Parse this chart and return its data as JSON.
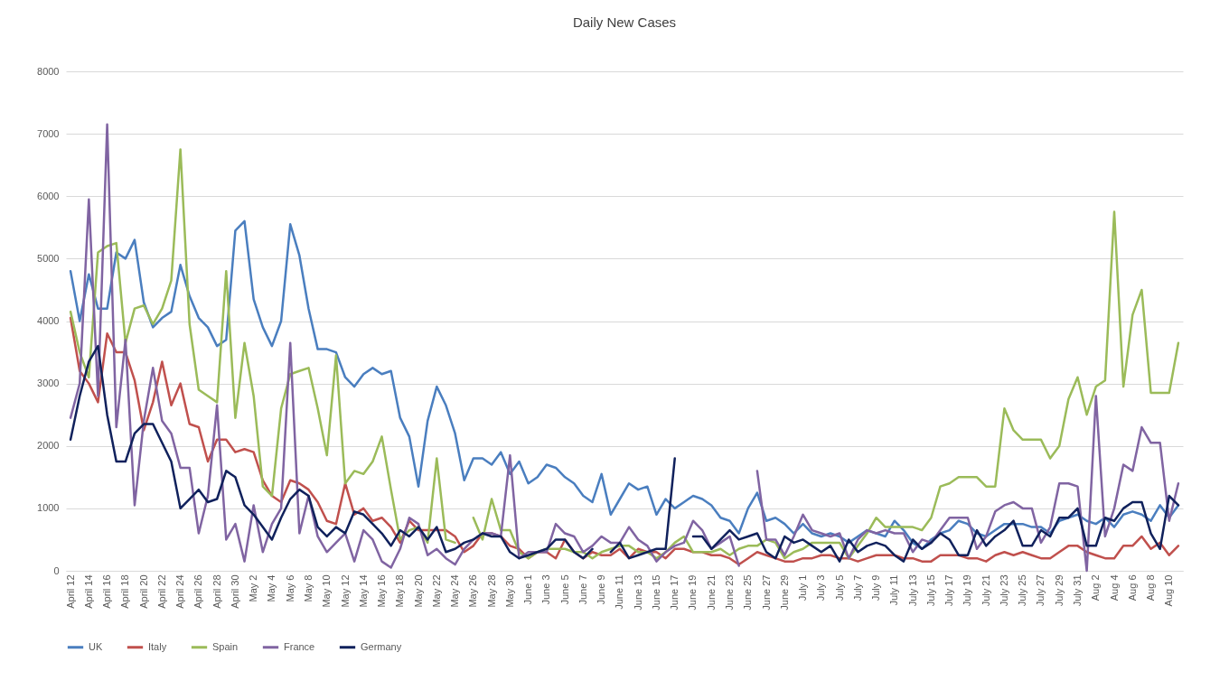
{
  "chart_data": {
    "type": "line",
    "title": "Daily New Cases",
    "categories": [
      "April 12",
      null,
      "April 14",
      null,
      "April 16",
      null,
      "April 18",
      null,
      "April 20",
      null,
      "April 22",
      null,
      "April 24",
      null,
      "April 26",
      null,
      "April 28",
      null,
      "April 30",
      null,
      "May 2",
      null,
      "May 4",
      null,
      "May 6",
      null,
      "May 8",
      null,
      "May 10",
      null,
      "May 12",
      null,
      "May 14",
      null,
      "May 16",
      null,
      "May 18",
      null,
      "May 20",
      null,
      "May 22",
      null,
      "May 24",
      null,
      "May 26",
      null,
      "May 28",
      null,
      "May 30",
      null,
      "June 1",
      null,
      "June 3",
      null,
      "June 5",
      null,
      "June 7",
      null,
      "June 9",
      null,
      "June 11",
      null,
      "June 13",
      null,
      "June 15",
      null,
      "June 17",
      null,
      "June 19",
      null,
      "June 21",
      null,
      "June 23",
      null,
      "June 25",
      null,
      "June 27",
      null,
      "June 29",
      null,
      "July 1",
      null,
      "July 3",
      null,
      "July 5",
      null,
      "July 7",
      null,
      "July 9",
      null,
      "July 11",
      null,
      "July 13",
      null,
      "July 15",
      null,
      "July 17",
      null,
      "July 19",
      null,
      "July 21",
      null,
      "July 23",
      null,
      "July 25",
      null,
      "July 27",
      null,
      "July 29",
      null,
      "July 31",
      null,
      "Aug 2",
      null,
      "Aug 4",
      null,
      "Aug 6",
      null,
      "Aug 8",
      null,
      "Aug 10",
      null
    ],
    "series": [
      {
        "name": "UK",
        "color": "#4a7ebf",
        "values": [
          4800,
          4000,
          4750,
          4200,
          4200,
          5100,
          5000,
          5300,
          4300,
          3900,
          4050,
          4150,
          4900,
          4400,
          4050,
          3900,
          3600,
          3700,
          5450,
          5600,
          4350,
          3900,
          3600,
          4000,
          5550,
          5050,
          4200,
          3550,
          3550,
          3500,
          3100,
          2950,
          3150,
          3250,
          3150,
          3200,
          2450,
          2150,
          1350,
          2400,
          2950,
          2650,
          2200,
          1450,
          1800,
          1800,
          1700,
          1900,
          1550,
          1750,
          1400,
          1500,
          1700,
          1650,
          1500,
          1400,
          1200,
          1100,
          1550,
          900,
          1150,
          1400,
          1300,
          1350,
          900,
          1150,
          1000,
          1100,
          1200,
          1150,
          1050,
          850,
          800,
          600,
          1000,
          1250,
          800,
          850,
          750,
          600,
          750,
          600,
          550,
          600,
          550,
          450,
          550,
          650,
          600,
          550,
          800,
          650,
          450,
          350,
          500,
          600,
          650,
          800,
          750,
          600,
          550,
          650,
          750,
          750,
          750,
          700,
          700,
          600,
          800,
          850,
          900,
          800,
          750,
          850,
          700,
          900,
          950,
          900,
          800,
          1050,
          850,
          1050
        ]
      },
      {
        "name": "Italy",
        "color": "#c0504d",
        "values": [
          4050,
          3200,
          3000,
          2700,
          3800,
          3500,
          3500,
          3050,
          2250,
          2700,
          3350,
          2650,
          3000,
          2350,
          2300,
          1750,
          2100,
          2100,
          1900,
          1950,
          1900,
          1450,
          1200,
          1100,
          1450,
          1400,
          1300,
          1100,
          800,
          750,
          1400,
          900,
          1000,
          800,
          850,
          700,
          450,
          800,
          650,
          650,
          650,
          650,
          550,
          300,
          400,
          600,
          600,
          550,
          400,
          350,
          200,
          300,
          300,
          200,
          500,
          300,
          200,
          300,
          250,
          250,
          350,
          200,
          350,
          300,
          300,
          200,
          350,
          350,
          300,
          300,
          250,
          250,
          200,
          100,
          200,
          300,
          250,
          200,
          150,
          150,
          200,
          200,
          250,
          250,
          200,
          200,
          150,
          200,
          250,
          250,
          250,
          200,
          200,
          150,
          150,
          250,
          250,
          250,
          200,
          200,
          150,
          250,
          300,
          250,
          300,
          250,
          200,
          200,
          300,
          400,
          400,
          300,
          250,
          200,
          200,
          400,
          400,
          550,
          350,
          450,
          250,
          400
        ]
      },
      {
        "name": "Spain",
        "color": "#9bbb59",
        "values": [
          4150,
          3500,
          3100,
          5100,
          5200,
          5250,
          3650,
          4200,
          4250,
          3950,
          4200,
          4650,
          6750,
          3950,
          2900,
          2800,
          2700,
          4800,
          2450,
          3650,
          2800,
          1350,
          1200,
          2600,
          3150,
          3200,
          3250,
          2600,
          1850,
          3450,
          1400,
          1600,
          1550,
          1750,
          2150,
          1300,
          500,
          650,
          700,
          450,
          1800,
          500,
          450,
          null,
          850,
          500,
          1150,
          650,
          650,
          300,
          200,
          300,
          350,
          350,
          350,
          300,
          300,
          200,
          300,
          350,
          400,
          400,
          300,
          300,
          200,
          300,
          450,
          550,
          300,
          300,
          300,
          350,
          250,
          350,
          400,
          400,
          500,
          450,
          200,
          300,
          350,
          450,
          450,
          450,
          450,
          200,
          400,
          600,
          850,
          700,
          700,
          700,
          700,
          650,
          850,
          1350,
          1400,
          1500,
          1500,
          1500,
          1350,
          1350,
          2600,
          2250,
          2100,
          2100,
          2100,
          1800,
          2000,
          2750,
          3100,
          2500,
          2950,
          3050,
          5750,
          2950,
          4100,
          4500,
          2850,
          2850,
          2850,
          3650
        ]
      },
      {
        "name": "France",
        "color": "#8064a2",
        "values": [
          2450,
          3000,
          5950,
          2800,
          7150,
          2300,
          3700,
          1050,
          2400,
          3250,
          2400,
          2200,
          1650,
          1650,
          600,
          1200,
          2650,
          500,
          750,
          150,
          1050,
          300,
          750,
          1000,
          3650,
          600,
          1200,
          550,
          300,
          450,
          600,
          150,
          650,
          500,
          150,
          50,
          350,
          850,
          750,
          250,
          350,
          200,
          100,
          350,
          500,
          600,
          600,
          550,
          1850,
          200,
          300,
          300,
          300,
          750,
          600,
          550,
          300,
          400,
          550,
          450,
          450,
          700,
          500,
          400,
          150,
          300,
          400,
          450,
          800,
          650,
          350,
          450,
          550,
          80,
          null,
          1600,
          500,
          500,
          250,
          550,
          900,
          650,
          600,
          550,
          600,
          200,
          500,
          650,
          600,
          650,
          600,
          600,
          300,
          500,
          450,
          650,
          850,
          850,
          850,
          350,
          550,
          950,
          1050,
          1100,
          1000,
          1000,
          450,
          700,
          1400,
          1400,
          1350,
          0,
          2800,
          550,
          1000,
          1700,
          1600,
          2300,
          2050,
          2050,
          800,
          1400
        ]
      },
      {
        "name": "Germany",
        "color": "#10215c",
        "values": [
          2100,
          2800,
          3350,
          3600,
          2500,
          1750,
          1750,
          2200,
          2350,
          2350,
          2050,
          1750,
          1000,
          1150,
          1300,
          1100,
          1150,
          1600,
          1500,
          1050,
          900,
          700,
          500,
          850,
          1150,
          1300,
          1200,
          700,
          550,
          700,
          600,
          950,
          900,
          750,
          600,
          400,
          650,
          550,
          700,
          500,
          700,
          300,
          350,
          450,
          500,
          600,
          550,
          550,
          300,
          200,
          250,
          300,
          350,
          500,
          500,
          300,
          200,
          350,
          null,
          300,
          450,
          200,
          250,
          300,
          350,
          350,
          1800,
          null,
          550,
          550,
          350,
          500,
          650,
          500,
          550,
          600,
          300,
          200,
          550,
          450,
          500,
          400,
          300,
          400,
          150,
          500,
          300,
          400,
          450,
          400,
          250,
          150,
          500,
          350,
          450,
          600,
          500,
          250,
          250,
          650,
          400,
          550,
          650,
          800,
          400,
          400,
          650,
          550,
          850,
          850,
          1000,
          400,
          400,
          850,
          800,
          1000,
          1100,
          1100,
          600,
          350,
          1200,
          1050
        ]
      }
    ],
    "ylim": [
      0,
      8000
    ],
    "yticks": [
      0,
      1000,
      2000,
      3000,
      4000,
      5000,
      6000,
      7000,
      8000
    ],
    "grid": "y",
    "legend": "bottom",
    "marker": "none",
    "line_style": "solid"
  }
}
